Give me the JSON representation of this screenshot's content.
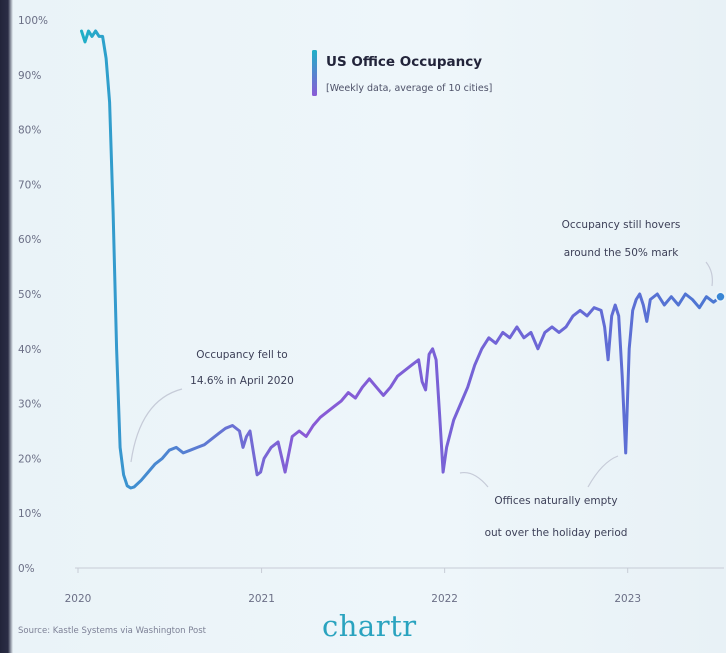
{
  "chart_data": {
    "type": "line",
    "title": "US Office Occupancy",
    "subtitle": "[Weekly data, average of 10 cities]",
    "xlabel": "",
    "ylabel": "",
    "x_tick_labels": [
      "2020",
      "2021",
      "2022",
      "2023"
    ],
    "y_tick_labels": [
      "0%",
      "10%",
      "20%",
      "30%",
      "40%",
      "50%",
      "60%",
      "70%",
      "80%",
      "90%",
      "100%"
    ],
    "y_ticks": [
      0,
      10,
      20,
      30,
      40,
      50,
      60,
      70,
      80,
      90,
      100
    ],
    "ylim": [
      0,
      100
    ],
    "xlim": [
      "2020-01-01",
      "2023-07-12"
    ],
    "grid": false,
    "legend": "top-center",
    "colors": {
      "line_start": "#1fb0c7",
      "line_end": "#8a5ad6",
      "accent": "#2aa3bf"
    },
    "series": [
      {
        "name": "US Office Occupancy",
        "points": [
          [
            "2020-01-08",
            98
          ],
          [
            "2020-01-15",
            96
          ],
          [
            "2020-01-22",
            98
          ],
          [
            "2020-01-29",
            97
          ],
          [
            "2020-02-05",
            98
          ],
          [
            "2020-02-12",
            97
          ],
          [
            "2020-02-19",
            97
          ],
          [
            "2020-02-26",
            93
          ],
          [
            "2020-03-04",
            85
          ],
          [
            "2020-03-11",
            65
          ],
          [
            "2020-03-18",
            40
          ],
          [
            "2020-03-25",
            22
          ],
          [
            "2020-04-01",
            17
          ],
          [
            "2020-04-08",
            15
          ],
          [
            "2020-04-15",
            14.6
          ],
          [
            "2020-04-22",
            14.8
          ],
          [
            "2020-05-06",
            16
          ],
          [
            "2020-05-20",
            17.5
          ],
          [
            "2020-06-03",
            19
          ],
          [
            "2020-06-17",
            20
          ],
          [
            "2020-07-01",
            21.5
          ],
          [
            "2020-07-15",
            22
          ],
          [
            "2020-07-29",
            21
          ],
          [
            "2020-08-12",
            21.5
          ],
          [
            "2020-08-26",
            22
          ],
          [
            "2020-09-09",
            22.5
          ],
          [
            "2020-09-23",
            23.5
          ],
          [
            "2020-10-07",
            24.5
          ],
          [
            "2020-10-21",
            25.5
          ],
          [
            "2020-11-04",
            26
          ],
          [
            "2020-11-18",
            25
          ],
          [
            "2020-11-25",
            22
          ],
          [
            "2020-12-02",
            24
          ],
          [
            "2020-12-09",
            25
          ],
          [
            "2020-12-16",
            21
          ],
          [
            "2020-12-23",
            17
          ],
          [
            "2020-12-30",
            17.5
          ],
          [
            "2021-01-06",
            20
          ],
          [
            "2021-01-20",
            22
          ],
          [
            "2021-02-03",
            23
          ],
          [
            "2021-02-17",
            17.5
          ],
          [
            "2021-03-03",
            24
          ],
          [
            "2021-03-17",
            25
          ],
          [
            "2021-03-31",
            24
          ],
          [
            "2021-04-14",
            26
          ],
          [
            "2021-04-28",
            27.5
          ],
          [
            "2021-05-12",
            28.5
          ],
          [
            "2021-05-26",
            29.5
          ],
          [
            "2021-06-09",
            30.5
          ],
          [
            "2021-06-23",
            32
          ],
          [
            "2021-07-07",
            31
          ],
          [
            "2021-07-21",
            33
          ],
          [
            "2021-08-04",
            34.5
          ],
          [
            "2021-08-18",
            33
          ],
          [
            "2021-09-01",
            31.5
          ],
          [
            "2021-09-15",
            33
          ],
          [
            "2021-09-29",
            35
          ],
          [
            "2021-10-13",
            36
          ],
          [
            "2021-10-27",
            37
          ],
          [
            "2021-11-10",
            38
          ],
          [
            "2021-11-17",
            34
          ],
          [
            "2021-11-24",
            32.5
          ],
          [
            "2021-12-01",
            39
          ],
          [
            "2021-12-08",
            40
          ],
          [
            "2021-12-15",
            38
          ],
          [
            "2021-12-22",
            28
          ],
          [
            "2021-12-29",
            17.5
          ],
          [
            "2022-01-05",
            22
          ],
          [
            "2022-01-19",
            27
          ],
          [
            "2022-02-02",
            30
          ],
          [
            "2022-02-16",
            33
          ],
          [
            "2022-03-02",
            37
          ],
          [
            "2022-03-16",
            40
          ],
          [
            "2022-03-30",
            42
          ],
          [
            "2022-04-13",
            41
          ],
          [
            "2022-04-27",
            43
          ],
          [
            "2022-05-11",
            42
          ],
          [
            "2022-05-25",
            44
          ],
          [
            "2022-06-08",
            42
          ],
          [
            "2022-06-22",
            43
          ],
          [
            "2022-07-06",
            40
          ],
          [
            "2022-07-20",
            43
          ],
          [
            "2022-08-03",
            44
          ],
          [
            "2022-08-17",
            43
          ],
          [
            "2022-08-31",
            44
          ],
          [
            "2022-09-14",
            46
          ],
          [
            "2022-09-28",
            47
          ],
          [
            "2022-10-12",
            46
          ],
          [
            "2022-10-26",
            47.5
          ],
          [
            "2022-11-09",
            47
          ],
          [
            "2022-11-16",
            44
          ],
          [
            "2022-11-23",
            38
          ],
          [
            "2022-11-30",
            46
          ],
          [
            "2022-12-07",
            48
          ],
          [
            "2022-12-14",
            46
          ],
          [
            "2022-12-21",
            35
          ],
          [
            "2022-12-28",
            21
          ],
          [
            "2023-01-04",
            40
          ],
          [
            "2023-01-11",
            47
          ],
          [
            "2023-01-18",
            49
          ],
          [
            "2023-01-25",
            50
          ],
          [
            "2023-02-01",
            48
          ],
          [
            "2023-02-08",
            45
          ],
          [
            "2023-02-15",
            49
          ],
          [
            "2023-03-01",
            50
          ],
          [
            "2023-03-15",
            48
          ],
          [
            "2023-03-29",
            49.5
          ],
          [
            "2023-04-12",
            48
          ],
          [
            "2023-04-26",
            50
          ],
          [
            "2023-05-10",
            49
          ],
          [
            "2023-05-24",
            47.5
          ],
          [
            "2023-06-07",
            49.5
          ],
          [
            "2023-06-21",
            48.5
          ],
          [
            "2023-07-05",
            49.5
          ]
        ]
      }
    ],
    "annotations": [
      {
        "lines": [
          "Occupancy fell to",
          "14.6% in April 2020"
        ]
      },
      {
        "lines": [
          "Offices naturally empty",
          "out over the holiday period"
        ]
      },
      {
        "lines": [
          "Occupancy still hovers",
          "around the 50% mark"
        ]
      }
    ]
  },
  "footer": {
    "source": "Source: Kastle Systems via Washington Post",
    "brand": "chartr"
  }
}
